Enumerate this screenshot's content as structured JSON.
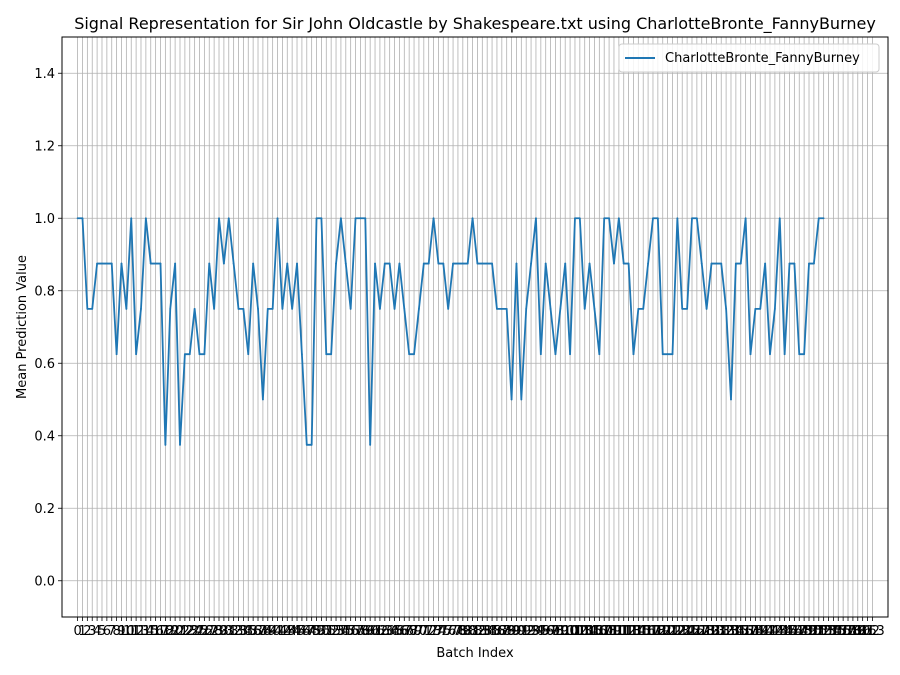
{
  "chart_data": {
    "type": "line",
    "title": "Signal Representation for Sir John Oldcastle by Shakespeare.txt using CharlotteBronte_FannyBurney",
    "xlabel": "Batch Index",
    "ylabel": "Mean Prediction Value",
    "xlim": [
      -3.2,
      166.2
    ],
    "ylim": [
      -0.1,
      1.5
    ],
    "yticks": [
      0.0,
      0.2,
      0.4,
      0.6,
      0.8,
      1.0,
      1.2,
      1.4
    ],
    "ytick_labels": [
      "0.0",
      "0.2",
      "0.4",
      "0.6",
      "0.8",
      "1.0",
      "1.2",
      "1.4"
    ],
    "xtick_start": 0,
    "xtick_end": 163,
    "grid": true,
    "legend_position": "top-right",
    "series": [
      {
        "name": "CharlotteBronte_FannyBurney",
        "color": "#1f77b4",
        "values": [
          1.0,
          1.0,
          0.75,
          0.75,
          0.875,
          0.875,
          0.875,
          0.875,
          0.625,
          0.875,
          0.75,
          1.0,
          0.625,
          0.75,
          1.0,
          0.875,
          0.875,
          0.875,
          0.375,
          0.75,
          0.875,
          0.375,
          0.625,
          0.625,
          0.75,
          0.625,
          0.625,
          0.875,
          0.75,
          1.0,
          0.875,
          1.0,
          0.875,
          0.75,
          0.75,
          0.625,
          0.875,
          0.75,
          0.5,
          0.75,
          0.75,
          1.0,
          0.75,
          0.875,
          0.75,
          0.875,
          0.625,
          0.375,
          0.375,
          1.0,
          1.0,
          0.625,
          0.625,
          0.875,
          1.0,
          0.875,
          0.75,
          1.0,
          1.0,
          1.0,
          0.375,
          0.875,
          0.75,
          0.875,
          0.875,
          0.75,
          0.875,
          0.75,
          0.625,
          0.625,
          0.75,
          0.875,
          0.875,
          1.0,
          0.875,
          0.875,
          0.75,
          0.875,
          0.875,
          0.875,
          0.875,
          1.0,
          0.875,
          0.875,
          0.875,
          0.875,
          0.75,
          0.75,
          0.75,
          0.5,
          0.875,
          0.5,
          0.75,
          0.875,
          1.0,
          0.625,
          0.875,
          0.75,
          0.625,
          0.75,
          0.875,
          0.625,
          1.0,
          1.0,
          0.75,
          0.875,
          0.75,
          0.625,
          1.0,
          1.0,
          0.875,
          1.0,
          0.875,
          0.875,
          0.625,
          0.75,
          0.75,
          0.875,
          1.0,
          1.0,
          0.625,
          0.625,
          0.625,
          1.0,
          0.75,
          0.75,
          1.0,
          1.0,
          0.875,
          0.75,
          0.875,
          0.875,
          0.875,
          0.75,
          0.5,
          0.875,
          0.875,
          1.0,
          0.625,
          0.75,
          0.75,
          0.875,
          0.625,
          0.75,
          1.0,
          0.625,
          0.875,
          0.875,
          0.625,
          0.625,
          0.875,
          0.875,
          1.0,
          1.0
        ]
      }
    ]
  }
}
